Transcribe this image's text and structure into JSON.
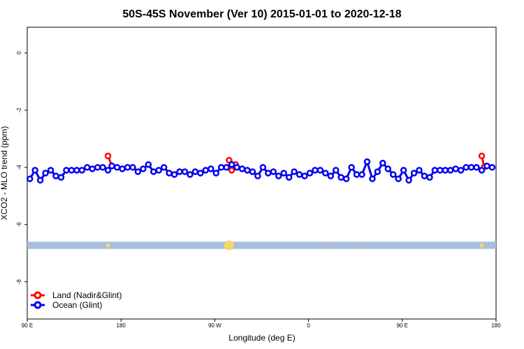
{
  "chart_data": {
    "type": "line",
    "title": "50S-45S November (Ver 10)   2015-01-01 to 2020-12-18",
    "xlabel": "Longitude (deg E)",
    "ylabel": "XCO2 - MLO trend (ppm)",
    "xlim": [
      90,
      450
    ],
    "ylim": [
      -9.3,
      0.9
    ],
    "x_ticks": [
      {
        "value": 90,
        "label": "90 E"
      },
      {
        "value": 162,
        "label": "180"
      },
      {
        "value": 234,
        "label": "90 W"
      },
      {
        "value": 306,
        "label": "0"
      },
      {
        "value": 378,
        "label": "90 E"
      },
      {
        "value": 450,
        "label": "180"
      }
    ],
    "y_ticks": [
      {
        "value": 0,
        "label": "0"
      },
      {
        "value": -2,
        "label": "-2"
      },
      {
        "value": -4,
        "label": "-4"
      },
      {
        "value": -6,
        "label": "-6"
      },
      {
        "value": -8,
        "label": "-8"
      }
    ],
    "series": [
      {
        "name": "Land (Nadir&Glint)",
        "color": "#ff0000",
        "segments": [
          {
            "x": [
              152,
              155
            ],
            "y": [
              -3.6,
              -3.95
            ]
          },
          {
            "x": [
              245,
              247,
              250
            ],
            "y": [
              -3.75,
              -4.1,
              -3.9
            ]
          },
          {
            "x": [
              439,
              441
            ],
            "y": [
              -3.6,
              -3.98
            ]
          }
        ]
      },
      {
        "name": "Ocean (Glint)",
        "color": "#0000ee",
        "x": [
          92,
          96,
          100,
          104,
          108,
          112,
          116,
          120,
          124,
          128,
          132,
          136,
          140,
          144,
          148,
          152,
          155,
          159,
          163,
          167,
          171,
          175,
          179,
          183,
          187,
          191,
          195,
          199,
          203,
          207,
          211,
          215,
          219,
          223,
          227,
          231,
          235,
          239,
          243,
          247,
          251,
          255,
          259,
          263,
          267,
          271,
          275,
          279,
          283,
          287,
          291,
          295,
          299,
          303,
          307,
          311,
          315,
          319,
          323,
          327,
          331,
          335,
          339,
          343,
          347,
          351,
          355,
          359,
          363,
          367,
          371,
          375,
          379,
          383,
          387,
          391,
          395,
          399,
          403,
          407,
          411,
          415,
          419,
          423,
          427,
          431,
          435,
          439,
          443,
          447
        ],
        "y": [
          -4.4,
          -4.1,
          -4.45,
          -4.2,
          -4.1,
          -4.3,
          -4.35,
          -4.1,
          -4.1,
          -4.1,
          -4.1,
          -4.0,
          -4.05,
          -4.0,
          -4.0,
          -4.1,
          -3.95,
          -4.0,
          -4.05,
          -4.0,
          -4.0,
          -4.15,
          -4.05,
          -3.9,
          -4.15,
          -4.1,
          -4.0,
          -4.2,
          -4.25,
          -4.15,
          -4.15,
          -4.25,
          -4.15,
          -4.2,
          -4.1,
          -4.05,
          -4.2,
          -4.0,
          -4.0,
          -3.9,
          -4.0,
          -4.05,
          -4.1,
          -4.15,
          -4.3,
          -4.0,
          -4.2,
          -4.15,
          -4.3,
          -4.2,
          -4.35,
          -4.15,
          -4.25,
          -4.3,
          -4.2,
          -4.1,
          -4.1,
          -4.2,
          -4.3,
          -4.1,
          -4.35,
          -4.4,
          -4.0,
          -4.25,
          -4.25,
          -3.8,
          -4.4,
          -4.15,
          -3.85,
          -4.05,
          -4.25,
          -4.4,
          -4.1,
          -4.45,
          -4.2,
          -4.1,
          -4.3,
          -4.35,
          -4.1,
          -4.1,
          -4.1,
          -4.1,
          -4.05,
          -4.1,
          -4.0,
          -4.0,
          -4.0,
          -4.1,
          -3.95,
          -4.0
        ]
      }
    ],
    "land_band": {
      "y_top": -6.6,
      "y_bottom": -6.85,
      "band_color": "#a8bedc",
      "marker_color": "#f5d76e",
      "markers_x": [
        152,
        245,
        321,
        345,
        439
      ],
      "marker_sizes": [
        3,
        7,
        1,
        1,
        3
      ]
    },
    "legend": {
      "position": "bottom-left",
      "entries": [
        "Land (Nadir&Glint)",
        "Ocean (Glint)"
      ]
    },
    "grid": false
  }
}
